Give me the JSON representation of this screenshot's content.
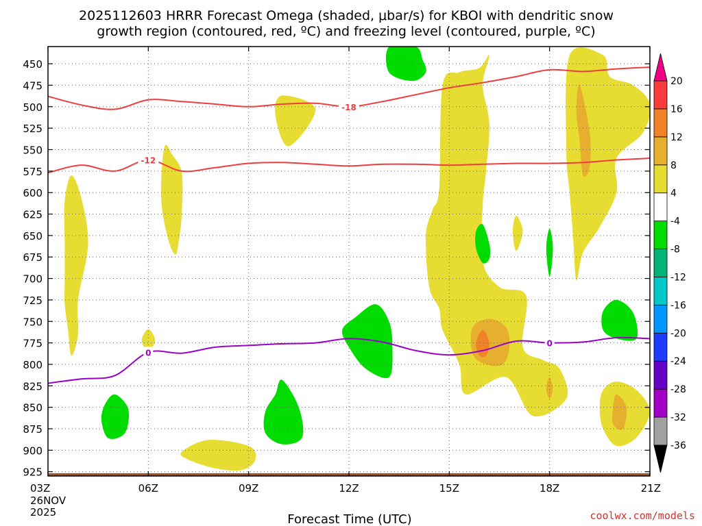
{
  "title": {
    "line1": "2025112603 HRRR Forecast Omega (shaded, μbar/s) for KBOI with dendritic snow",
    "line2": "growth region (contoured, red, ºC) and freezing level (contoured, purple, ºC)"
  },
  "credit": "coolwx.com/models",
  "chart_data": {
    "type": "contour",
    "title": "2025112603 HRRR Forecast Omega (shaded, μbar/s) for KBOI with dendritic snow growth region (contoured, red, ºC) and freezing level (contoured, purple, ºC)",
    "xlabel": "Forecast Time (UTC)",
    "ylabel": "",
    "xlim": [
      3,
      21
    ],
    "ylim": [
      930,
      430
    ],
    "x_ticks": [
      {
        "value": 3,
        "label": "03Z"
      },
      {
        "value": 6,
        "label": "06Z"
      },
      {
        "value": 9,
        "label": "09Z"
      },
      {
        "value": 12,
        "label": "12Z"
      },
      {
        "value": 15,
        "label": "15Z"
      },
      {
        "value": 18,
        "label": "18Z"
      },
      {
        "value": 21,
        "label": "21Z"
      }
    ],
    "x_first_date": [
      "26NOV",
      "2025"
    ],
    "y_ticks": [
      450,
      475,
      500,
      525,
      550,
      575,
      600,
      625,
      650,
      675,
      700,
      725,
      750,
      775,
      800,
      825,
      850,
      875,
      900,
      925
    ],
    "grid": true,
    "colorbar": {
      "levels": [
        -36,
        -32,
        -28,
        -24,
        -20,
        -16,
        -12,
        -8,
        -4,
        4,
        8,
        12,
        16,
        20
      ],
      "labels": [
        "20",
        "16",
        "12",
        "8",
        "4",
        "-4",
        "-8",
        "-12",
        "-16",
        "-20",
        "-24",
        "-28",
        "-32",
        "-36"
      ],
      "colors": [
        "#a0a0a0",
        "#a000c8",
        "#6400c8",
        "#1e3cff",
        "#0096ff",
        "#00c8c8",
        "#00b478",
        "#00dc00",
        "#ffffff",
        "#e6dc32",
        "#e6af2d",
        "#f08228",
        "#fa3c3c"
      ],
      "over_color": "#f00082",
      "under_color": "#000000"
    },
    "contour_lines": [
      {
        "name": "dendritic snow growth region -18",
        "label": "-18",
        "color": "#f03c3c",
        "points": [
          [
            3,
            488
          ],
          [
            4,
            498
          ],
          [
            5,
            503
          ],
          [
            6,
            492
          ],
          [
            7,
            494
          ],
          [
            8,
            497
          ],
          [
            9,
            500
          ],
          [
            10,
            497
          ],
          [
            11,
            496
          ],
          [
            12,
            500
          ],
          [
            13,
            494
          ],
          [
            14,
            486
          ],
          [
            15,
            478
          ],
          [
            16,
            472
          ],
          [
            17,
            465
          ],
          [
            18,
            457
          ],
          [
            19,
            459
          ],
          [
            20,
            456
          ],
          [
            21,
            454
          ]
        ]
      },
      {
        "name": "dendritic snow growth region -12",
        "label": "-12",
        "color": "#f03c3c",
        "points": [
          [
            3,
            577
          ],
          [
            4,
            568
          ],
          [
            5,
            575
          ],
          [
            6,
            562
          ],
          [
            7,
            575
          ],
          [
            8,
            571
          ],
          [
            9,
            566
          ],
          [
            10,
            565
          ],
          [
            11,
            567
          ],
          [
            12,
            569
          ],
          [
            13,
            567
          ],
          [
            14,
            567
          ],
          [
            15,
            568
          ],
          [
            16,
            567
          ],
          [
            17,
            566
          ],
          [
            18,
            566
          ],
          [
            19,
            565
          ],
          [
            20,
            562
          ],
          [
            21,
            560
          ]
        ]
      },
      {
        "name": "freezing level 0",
        "label": "0",
        "color": "#9a00c8",
        "points": [
          [
            3,
            822
          ],
          [
            4,
            817
          ],
          [
            5,
            813
          ],
          [
            6,
            786
          ],
          [
            7,
            787
          ],
          [
            8,
            780
          ],
          [
            9,
            778
          ],
          [
            10,
            776
          ],
          [
            11,
            775
          ],
          [
            12,
            770
          ],
          [
            13,
            774
          ],
          [
            14,
            784
          ],
          [
            15,
            789
          ],
          [
            16,
            784
          ],
          [
            17,
            773
          ],
          [
            18,
            775
          ],
          [
            19,
            774
          ],
          [
            20,
            769
          ],
          [
            21,
            770
          ]
        ]
      }
    ],
    "contour_labels": [
      {
        "text": "-18",
        "x": 12,
        "y": 500,
        "color": "#f03c3c"
      },
      {
        "text": "-12",
        "x": 6,
        "y": 562,
        "color": "#f03c3c"
      },
      {
        "text": "0",
        "x": 6,
        "y": 786,
        "color": "#9a00c8"
      },
      {
        "text": "0",
        "x": 18,
        "y": 775,
        "color": "#9a00c8"
      }
    ],
    "filled_regions": [
      {
        "level": "4 to 8",
        "color": "#e6dc32",
        "points": [
          [
            3.7,
            580
          ],
          [
            4.0,
            607
          ],
          [
            4.2,
            660
          ],
          [
            3.9,
            725
          ],
          [
            3.9,
            765
          ],
          [
            3.7,
            790
          ],
          [
            3.6,
            760
          ],
          [
            3.5,
            730
          ],
          [
            3.5,
            700
          ],
          [
            3.5,
            660
          ],
          [
            3.5,
            610
          ]
        ]
      },
      {
        "level": "4 to 8",
        "color": "#e6dc32",
        "points": [
          [
            6.0,
            759
          ],
          [
            6.2,
            772
          ],
          [
            6.0,
            785
          ],
          [
            5.8,
            772
          ]
        ]
      },
      {
        "level": "4 to 8",
        "color": "#e6dc32",
        "points": [
          [
            6.5,
            545
          ],
          [
            6.7,
            555
          ],
          [
            7.0,
            577
          ],
          [
            7.0,
            625
          ],
          [
            6.9,
            660
          ],
          [
            6.8,
            672
          ],
          [
            6.6,
            655
          ],
          [
            6.4,
            615
          ],
          [
            6.4,
            575
          ]
        ]
      },
      {
        "level": "4 to 8",
        "color": "#e6dc32",
        "points": [
          [
            7.0,
            902
          ],
          [
            7.8,
            888
          ],
          [
            9.0,
            895
          ],
          [
            9.2,
            911
          ],
          [
            8.8,
            923
          ],
          [
            8.0,
            921
          ],
          [
            7.2,
            911
          ]
        ]
      },
      {
        "level": "4 to 8",
        "color": "#e6dc32",
        "points": [
          [
            10.0,
            487
          ],
          [
            11.0,
            503
          ],
          [
            10.2,
            546
          ],
          [
            9.8,
            510
          ]
        ]
      },
      {
        "level": "4 to 8",
        "color": "#e6dc32",
        "points": [
          [
            14.8,
            475
          ],
          [
            15.3,
            460
          ],
          [
            15.9,
            455
          ],
          [
            16.2,
            440
          ],
          [
            16.0,
            475
          ],
          [
            16.2,
            520
          ],
          [
            16.1,
            575
          ],
          [
            16.0,
            615
          ],
          [
            16.0,
            680
          ],
          [
            16.5,
            710
          ],
          [
            17.3,
            720
          ],
          [
            17.2,
            780
          ],
          [
            17.8,
            795
          ],
          [
            18.3,
            805
          ],
          [
            18.5,
            840
          ],
          [
            17.5,
            860
          ],
          [
            16.7,
            815
          ],
          [
            15.5,
            835
          ],
          [
            15.3,
            800
          ],
          [
            14.8,
            760
          ],
          [
            14.7,
            735
          ],
          [
            14.4,
            710
          ],
          [
            14.3,
            650
          ],
          [
            14.5,
            620
          ],
          [
            14.7,
            595
          ]
        ]
      },
      {
        "level": "4 to 8",
        "color": "#e6dc32",
        "points": [
          [
            18.6,
            440
          ],
          [
            19.6,
            440
          ],
          [
            19.8,
            465
          ],
          [
            20.5,
            475
          ],
          [
            21.0,
            497
          ],
          [
            20.8,
            530
          ],
          [
            20.0,
            560
          ],
          [
            20.0,
            600
          ],
          [
            19.5,
            640
          ],
          [
            19.0,
            670
          ],
          [
            18.8,
            702
          ],
          [
            18.7,
            650
          ],
          [
            18.6,
            600
          ],
          [
            18.5,
            550
          ]
        ]
      },
      {
        "level": "4 to 8",
        "color": "#e6dc32",
        "points": [
          [
            20.0,
            820
          ],
          [
            20.6,
            830
          ],
          [
            21.0,
            855
          ],
          [
            20.6,
            885
          ],
          [
            20.0,
            895
          ],
          [
            19.6,
            875
          ],
          [
            19.5,
            850
          ],
          [
            19.6,
            830
          ]
        ]
      },
      {
        "level": "4 to 8",
        "color": "#e6dc32",
        "points": [
          [
            17.0,
            627
          ],
          [
            17.2,
            645
          ],
          [
            17.0,
            668
          ],
          [
            16.9,
            645
          ]
        ]
      },
      {
        "level": "8 to 12",
        "color": "#e6af2d",
        "points": [
          [
            16.2,
            747
          ],
          [
            16.7,
            757
          ],
          [
            16.8,
            780
          ],
          [
            16.6,
            800
          ],
          [
            16.1,
            800
          ],
          [
            15.7,
            788
          ],
          [
            15.7,
            757
          ]
        ]
      },
      {
        "level": "8 to 12",
        "color": "#e6af2d",
        "points": [
          [
            18.9,
            475
          ],
          [
            19.2,
            530
          ],
          [
            19.2,
            570
          ],
          [
            19.0,
            580
          ],
          [
            18.9,
            540
          ],
          [
            18.8,
            505
          ]
        ]
      },
      {
        "level": "8 to 12",
        "color": "#e6af2d",
        "points": [
          [
            18.0,
            815
          ],
          [
            18.1,
            828
          ],
          [
            18.0,
            840
          ],
          [
            17.9,
            828
          ]
        ]
      },
      {
        "level": "8 to 12",
        "color": "#e6af2d",
        "points": [
          [
            20.0,
            835
          ],
          [
            20.3,
            850
          ],
          [
            20.2,
            875
          ],
          [
            19.9,
            870
          ],
          [
            19.9,
            850
          ]
        ]
      },
      {
        "level": "12 to 16",
        "color": "#f08228",
        "points": [
          [
            16.0,
            760
          ],
          [
            16.2,
            775
          ],
          [
            16.1,
            790
          ],
          [
            15.9,
            790
          ],
          [
            15.8,
            775
          ]
        ]
      },
      {
        "level": "-8 to -4",
        "color": "#00dc00",
        "points": [
          [
            14.0,
            430
          ],
          [
            14.2,
            445
          ],
          [
            14.3,
            460
          ],
          [
            13.9,
            470
          ],
          [
            13.2,
            460
          ],
          [
            13.2,
            430
          ]
        ]
      },
      {
        "level": "-8 to -4",
        "color": "#00dc00",
        "points": [
          [
            12.8,
            730
          ],
          [
            13.2,
            750
          ],
          [
            13.3,
            780
          ],
          [
            13.2,
            815
          ],
          [
            12.5,
            805
          ],
          [
            12.0,
            780
          ],
          [
            11.8,
            760
          ],
          [
            12.2,
            745
          ]
        ]
      },
      {
        "level": "-8 to -4",
        "color": "#00dc00",
        "points": [
          [
            5.0,
            835
          ],
          [
            5.4,
            852
          ],
          [
            5.3,
            880
          ],
          [
            4.8,
            886
          ],
          [
            4.6,
            865
          ],
          [
            4.7,
            847
          ]
        ]
      },
      {
        "level": "-8 to -4",
        "color": "#00dc00",
        "points": [
          [
            10.0,
            818
          ],
          [
            10.5,
            850
          ],
          [
            10.6,
            885
          ],
          [
            10.0,
            893
          ],
          [
            9.5,
            880
          ],
          [
            9.5,
            855
          ],
          [
            9.8,
            835
          ]
        ]
      },
      {
        "level": "-8 to -4",
        "color": "#00dc00",
        "points": [
          [
            16.0,
            637
          ],
          [
            16.2,
            660
          ],
          [
            16.2,
            677
          ],
          [
            16.0,
            682
          ],
          [
            15.8,
            665
          ],
          [
            15.8,
            645
          ]
        ]
      },
      {
        "level": "-8 to -4",
        "color": "#00dc00",
        "points": [
          [
            18.0,
            642
          ],
          [
            18.1,
            665
          ],
          [
            18.0,
            698
          ],
          [
            17.9,
            665
          ]
        ]
      },
      {
        "level": "-8 to -4",
        "color": "#00dc00",
        "points": [
          [
            20.0,
            725
          ],
          [
            20.5,
            740
          ],
          [
            20.6,
            770
          ],
          [
            20.0,
            770
          ],
          [
            19.6,
            760
          ],
          [
            19.6,
            738
          ]
        ]
      }
    ],
    "terrain_pressure": 930
  }
}
